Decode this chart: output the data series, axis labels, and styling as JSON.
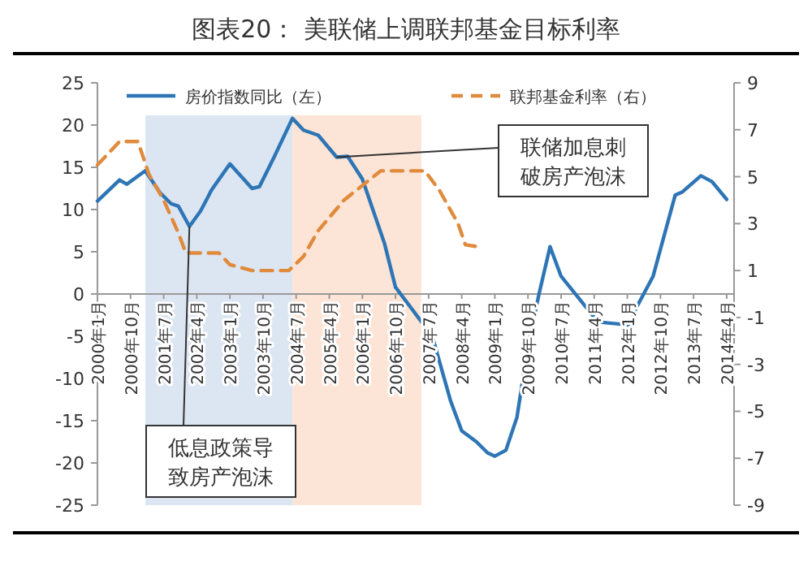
{
  "chart_data": {
    "type": "line",
    "title": "图表20：  美联储上调联邦基金目标利率",
    "legend": "top",
    "grid": false,
    "xlim": [
      "2000-01",
      "2014-06"
    ],
    "ylim": [
      -25,
      25
    ],
    "yticks": [
      -25,
      -20,
      -15,
      -10,
      -5,
      0,
      5,
      10,
      15,
      20,
      25
    ],
    "y2lim": [
      -9,
      9
    ],
    "y2ticks": [
      -9,
      -7,
      -5,
      -3,
      -1,
      1,
      3,
      5,
      7,
      9
    ],
    "xticks": [
      {
        "value": "2000-01",
        "label": "2000年1月"
      },
      {
        "value": "2000-10",
        "label": "2000年10月"
      },
      {
        "value": "2001-07",
        "label": "2001年7月"
      },
      {
        "value": "2002-04",
        "label": "2002年4月"
      },
      {
        "value": "2003-01",
        "label": "2003年1月"
      },
      {
        "value": "2003-10",
        "label": "2003年10月"
      },
      {
        "value": "2004-07",
        "label": "2004年7月"
      },
      {
        "value": "2005-04",
        "label": "2005年4月"
      },
      {
        "value": "2006-01",
        "label": "2006年1月"
      },
      {
        "value": "2006-10",
        "label": "2006年10月"
      },
      {
        "value": "2007-07",
        "label": "2007年7月"
      },
      {
        "value": "2008-04",
        "label": "2008年4月"
      },
      {
        "value": "2009-01",
        "label": "2009年1月"
      },
      {
        "value": "2009-10",
        "label": "2009年10月"
      },
      {
        "value": "2010-07",
        "label": "2010年7月"
      },
      {
        "value": "2011-04",
        "label": "2011年4月"
      },
      {
        "value": "2012-01",
        "label": "2012年1月"
      },
      {
        "value": "2012-10",
        "label": "2012年10月"
      },
      {
        "value": "2013-07",
        "label": "2013年7月"
      },
      {
        "value": "2014-04",
        "label": "2014年4月"
      }
    ],
    "bands": [
      {
        "axis": "x",
        "from": "2001-02",
        "to": "2004-06",
        "color": "#dce6f2"
      },
      {
        "axis": "x",
        "from": "2004-06",
        "to": "2007-05",
        "color": "#fce4d6"
      }
    ],
    "series": [
      {
        "name": "房价指数同比（左）",
        "color": "#2e75b6",
        "line_style": "solid",
        "x": [
          "2000-01",
          "2000-07",
          "2000-09",
          "2001-02",
          "2001-06",
          "2001-09",
          "2001-11",
          "2002-02",
          "2002-05",
          "2002-08",
          "2003-01",
          "2003-07",
          "2003-09",
          "2004-01",
          "2004-06",
          "2004-09",
          "2005-01",
          "2005-06",
          "2005-09",
          "2006-01",
          "2006-07",
          "2006-10",
          "2007-08",
          "2008-01",
          "2008-04",
          "2008-08",
          "2008-11",
          "2009-01",
          "2009-04",
          "2009-07",
          "2009-10",
          "2010-01",
          "2010-04",
          "2010-07",
          "2011-05",
          "2012-02",
          "2012-03",
          "2012-08",
          "2013-02",
          "2013-04",
          "2013-09",
          "2013-12",
          "2014-04"
        ],
        "values": [
          11,
          13.5,
          13,
          14.6,
          12,
          10.7,
          10.4,
          8,
          9.8,
          12.3,
          15.4,
          12.5,
          12.7,
          16.2,
          20.8,
          19.4,
          18.8,
          16.2,
          16.3,
          13.6,
          6,
          0.8,
          -5,
          -12.7,
          -16.2,
          -17.5,
          -18.8,
          -19.2,
          -18.5,
          -14.6,
          -6.2,
          0,
          5.6,
          2.1,
          -3.3,
          -3.7,
          -2,
          2.1,
          11.7,
          12.1,
          14,
          13.3,
          11.2
        ]
      },
      {
        "name": "联邦基金利率（右）",
        "color": "#e08a3c",
        "line_style": "dashed",
        "axis": "y2",
        "x": [
          "2000-01",
          "2000-07",
          "2000-12",
          "2001-03",
          "2001-07",
          "2001-11",
          "2002-01",
          "2002-10",
          "2003-01",
          "2003-07",
          "2004-05",
          "2004-09",
          "2005-01",
          "2005-08",
          "2006-06",
          "2006-10",
          "2007-06",
          "2007-10",
          "2008-03",
          "2008-05",
          "2008-09"
        ],
        "values": [
          5.5,
          6.5,
          6.5,
          5.1,
          4,
          2.6,
          1.75,
          1.75,
          1.25,
          1,
          1,
          1.6,
          2.7,
          4,
          5.25,
          5.25,
          5.25,
          4.4,
          3,
          2.1,
          2
        ]
      }
    ],
    "annotations": [
      {
        "text": "联储加息刺破房产泡沫",
        "x": "2005-06",
        "y": 16.2
      },
      {
        "text": "低息政策导致房产泡沫",
        "x": "2002-02",
        "y": 8
      }
    ]
  }
}
